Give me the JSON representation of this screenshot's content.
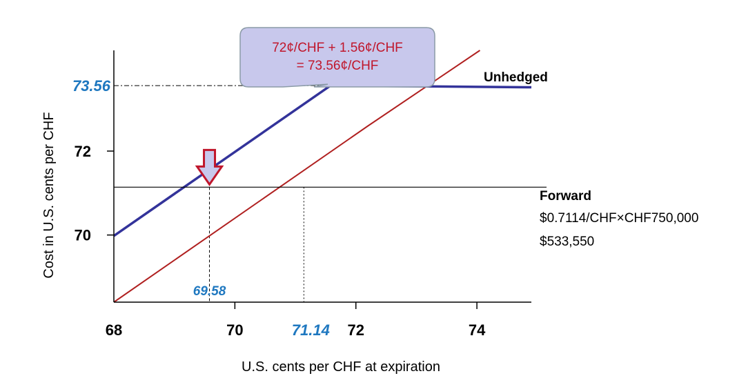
{
  "chart_data": {
    "type": "line",
    "title": "",
    "xlabel": "U.S. cents per CHF at expiration",
    "ylabel": "Cost in U.S. cents per CHF",
    "xlim": [
      68,
      74.9
    ],
    "ylim": [
      68.4,
      74.4
    ],
    "x_ticks": [
      {
        "value": 68,
        "label": "68"
      },
      {
        "value": 70,
        "label": "70"
      },
      {
        "value": 72,
        "label": "72"
      },
      {
        "value": 74,
        "label": "74"
      }
    ],
    "y_ticks": [
      {
        "value": 70,
        "label": "70"
      },
      {
        "value": 72,
        "label": "72"
      }
    ],
    "series": [
      {
        "name": "Unhedged",
        "color": "#b02020",
        "points": [
          [
            68,
            68.4
          ],
          [
            72.2,
            72.6
          ],
          [
            74.05,
            74.4
          ]
        ]
      },
      {
        "name": "",
        "color": "#33339a",
        "points": [
          [
            68,
            69.98
          ],
          [
            71.58,
            73.56
          ],
          [
            74.9,
            73.52
          ]
        ]
      },
      {
        "name": "Forward",
        "color": "#000000",
        "points": [
          [
            68,
            71.14
          ],
          [
            74.9,
            71.14
          ]
        ]
      }
    ],
    "annotations": {
      "y_marker": {
        "value": 73.56,
        "label": "73.56"
      },
      "x_marker_low": {
        "value": 69.58,
        "label": "69.58"
      },
      "x_marker_forward": {
        "value": 71.14,
        "label": "71.14"
      },
      "callout_lines": [
        "72¢/CHF + 1.56¢/CHF",
        "= 73.56¢/CHF"
      ],
      "forward_notes": [
        "$0.7114/CHF×CHF750,000",
        "$533,550"
      ],
      "arrow_color": "#c0162b",
      "arrow_fill": "#c8c8ec",
      "callout_fill": "#c8c8ec"
    }
  }
}
